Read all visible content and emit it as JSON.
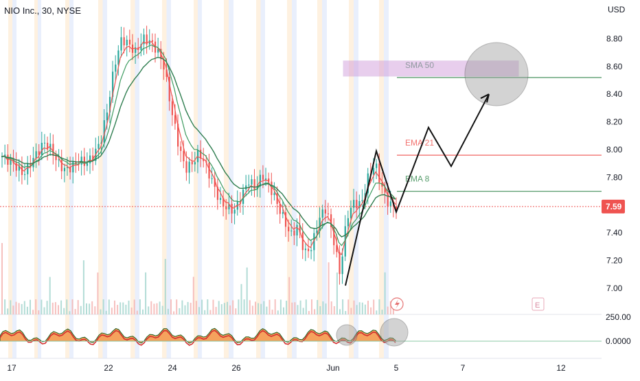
{
  "title": "NIO Inc., 30, NYSE",
  "chart_data": {
    "type": "candlestick",
    "symbol": "NIO Inc.",
    "interval": "30",
    "exchange": "NYSE",
    "currency": "USD",
    "last_price": "7.59",
    "y_ticks": [
      "8.80",
      "8.60",
      "8.40",
      "8.20",
      "8.00",
      "7.80",
      "7.40",
      "7.20",
      "7.00"
    ],
    "x_ticks": [
      "17",
      "22",
      "24",
      "26",
      "Jun",
      "5",
      "7",
      "12"
    ],
    "oscillator_ticks": [
      "250.00",
      "0.0000"
    ],
    "close_series": [
      7.95,
      7.92,
      7.88,
      7.82,
      7.9,
      7.98,
      8.05,
      8.0,
      7.9,
      7.85,
      7.88,
      7.92,
      7.9,
      7.96,
      8.06,
      8.3,
      8.62,
      8.8,
      8.76,
      8.7,
      8.8,
      8.78,
      8.72,
      8.6,
      8.3,
      8.05,
      7.86,
      7.9,
      7.98,
      7.88,
      7.75,
      7.62,
      7.58,
      7.56,
      7.66,
      7.78,
      7.72,
      7.82,
      7.74,
      7.62,
      7.5,
      7.38,
      7.45,
      7.25,
      7.3,
      7.5,
      7.58,
      7.38,
      7.1,
      7.52,
      7.62,
      7.6,
      7.8,
      7.9,
      7.72,
      7.6,
      7.59
    ],
    "indicators": [
      {
        "name": "SMA 50",
        "value": 8.52,
        "color": "#5a9e6f"
      },
      {
        "name": "EMA 21",
        "value": 7.96,
        "color": "#f2726f"
      },
      {
        "name": "EMA 8",
        "value": 7.7,
        "color": "#5a9e6f"
      }
    ],
    "target_zone": {
      "from": 8.53,
      "to": 8.64
    },
    "projection_path": [
      {
        "x_label": "Jun",
        "price": 7.02
      },
      {
        "x_label": "Jun",
        "price": 7.99
      },
      {
        "x_label": "5",
        "price": 7.55
      },
      {
        "x_label": "5",
        "price": 8.16
      },
      {
        "x_label": "7",
        "price": 7.88
      },
      {
        "x_label": "7",
        "price": 8.4
      }
    ],
    "colors": {
      "up": "#26a69a",
      "down": "#ef5350",
      "ema_fast": "#ef5350",
      "sma": "#2e7d4f",
      "zone": "#ce93d8",
      "oscillator_fill": "#f5a25d"
    }
  },
  "icons": {
    "lightning": "lightning-icon",
    "earnings": "earnings-marker-icon",
    "earnings_letter": "E"
  }
}
